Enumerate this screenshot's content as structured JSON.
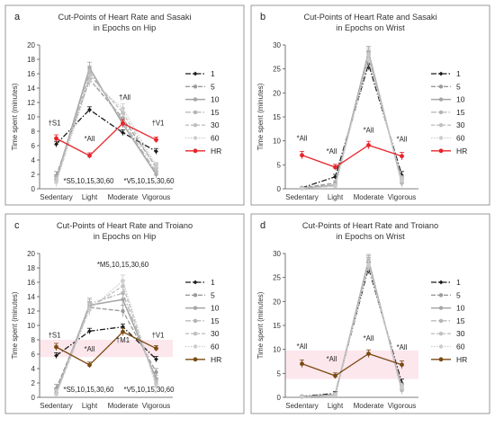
{
  "styles": {
    "one": {
      "color": "#1a1a1a",
      "dash": "6 2 1.5 2",
      "width": 1.3,
      "marker": "diamond",
      "r": 2.4
    },
    "five": {
      "color": "#9a9a9a",
      "dash": "5 2",
      "width": 1.3,
      "marker": "circle",
      "r": 2.2
    },
    "ten": {
      "color": "#a5a5a5",
      "dash": "",
      "width": 1.5,
      "marker": "circle",
      "r": 2.2
    },
    "fifteen": {
      "color": "#b4b4b4",
      "dash": "6 2 1.5 2",
      "width": 1.3,
      "marker": "circle",
      "r": 2.2
    },
    "thirty": {
      "color": "#c0c0c0",
      "dash": "4 2",
      "width": 1.3,
      "marker": "circle",
      "r": 2.2
    },
    "sixty": {
      "color": "#cccccc",
      "dash": "1.5 1.5",
      "width": 1.3,
      "marker": "circle",
      "r": 2.2
    },
    "hr_red": {
      "color": "#e8232a",
      "dash": "",
      "width": 1.3,
      "marker": "circle",
      "r": 2.4
    },
    "hr_brown": {
      "color": "#7b4a12",
      "dash": "",
      "width": 1.3,
      "marker": "circle",
      "r": 2.4
    }
  },
  "chart_data": [
    {
      "panel": "a",
      "type": "line",
      "title": "Cut-Points of Heart Rate and Sasaki",
      "subtitle": "in Epochs on Hip",
      "ylabel": "Time spent (minutes)",
      "categories": [
        "Sedentary",
        "Light",
        "Moderate",
        "Vigorous"
      ],
      "ylim": [
        0,
        20
      ],
      "yticks": [
        0,
        2,
        4,
        6,
        8,
        10,
        12,
        14,
        16,
        18,
        20
      ],
      "band": null,
      "legend": [
        "1",
        "5",
        "10",
        "15",
        "30",
        "60",
        "HR"
      ],
      "series": [
        {
          "name": "1",
          "style": "one",
          "values": [
            6.2,
            11.0,
            7.8,
            5.2
          ],
          "err": [
            0.4,
            0.4,
            0.4,
            0.4
          ]
        },
        {
          "name": "5",
          "style": "five",
          "values": [
            1.8,
            15.2,
            9.8,
            3.0
          ],
          "err": [
            0.6,
            0.8,
            0.6,
            0.5
          ]
        },
        {
          "name": "10",
          "style": "ten",
          "values": [
            1.3,
            16.8,
            9.0,
            2.0
          ],
          "err": [
            0.6,
            0.8,
            0.6,
            0.5
          ]
        },
        {
          "name": "15",
          "style": "fifteen",
          "values": [
            1.2,
            16.3,
            9.4,
            2.3
          ],
          "err": [
            0.6,
            0.8,
            0.6,
            0.5
          ]
        },
        {
          "name": "30",
          "style": "thirty",
          "values": [
            1.0,
            15.8,
            10.6,
            2.8
          ],
          "err": [
            0.6,
            0.8,
            0.6,
            0.5
          ]
        },
        {
          "name": "60",
          "style": "sixty",
          "values": [
            0.9,
            15.0,
            11.2,
            3.2
          ],
          "err": [
            0.6,
            0.8,
            0.6,
            0.5
          ]
        },
        {
          "name": "HR",
          "style": "hr_red",
          "values": [
            7.0,
            4.6,
            9.1,
            6.8
          ],
          "err": [
            0.5,
            0.4,
            0.5,
            0.4
          ]
        }
      ],
      "annotations": [
        {
          "text": "†S1",
          "cat": 0,
          "y": 8.8,
          "dx": -2
        },
        {
          "text": "*All",
          "cat": 1,
          "y": 6.6,
          "dx": 0
        },
        {
          "text": "†All",
          "cat": 2,
          "y": 12.4,
          "dx": 2
        },
        {
          "text": "†V1",
          "cat": 3,
          "y": 8.8,
          "dx": 2
        },
        {
          "text": "*S5,10,15,30,60",
          "cat": 0,
          "y": -0.4,
          "dx": 36
        },
        {
          "text": "*V5,10,15,30,60",
          "cat": 3,
          "y": -0.4,
          "dx": -8
        }
      ]
    },
    {
      "panel": "b",
      "type": "line",
      "title": "Cut-Points of Heart Rate and Sasaki",
      "subtitle": "in Epochs on Wrist",
      "ylabel": "Time spent (minutes)",
      "categories": [
        "Sedentary",
        "Light",
        "Moderate",
        "Vigorous"
      ],
      "ylim": [
        0,
        30
      ],
      "yticks": [
        0,
        5,
        10,
        15,
        20,
        25,
        30
      ],
      "band": null,
      "legend": [
        "1",
        "5",
        "10",
        "15",
        "30",
        "60",
        "HR"
      ],
      "series": [
        {
          "name": "1",
          "style": "one",
          "values": [
            0.2,
            2.5,
            26.0,
            2.8
          ],
          "err": [
            0.2,
            0.5,
            1.2,
            0.8
          ]
        },
        {
          "name": "5",
          "style": "five",
          "values": [
            0.2,
            1.2,
            27.5,
            1.8
          ],
          "err": [
            0.2,
            0.5,
            1.2,
            0.8
          ]
        },
        {
          "name": "10",
          "style": "ten",
          "values": [
            0.1,
            0.8,
            28.5,
            1.2
          ],
          "err": [
            0.2,
            0.5,
            1.2,
            0.8
          ]
        },
        {
          "name": "15",
          "style": "fifteen",
          "values": [
            0.1,
            0.7,
            28.2,
            1.4
          ],
          "err": [
            0.2,
            0.5,
            1.2,
            0.8
          ]
        },
        {
          "name": "30",
          "style": "thirty",
          "values": [
            0.1,
            0.6,
            27.8,
            1.6
          ],
          "err": [
            0.2,
            0.5,
            1.2,
            0.8
          ]
        },
        {
          "name": "60",
          "style": "sixty",
          "values": [
            0.1,
            0.5,
            27.0,
            1.9
          ],
          "err": [
            0.2,
            0.5,
            1.2,
            0.8
          ]
        },
        {
          "name": "HR",
          "style": "hr_red",
          "values": [
            7.0,
            4.5,
            9.1,
            6.8
          ],
          "err": [
            0.8,
            0.6,
            0.8,
            0.8
          ]
        }
      ],
      "annotations": [
        {
          "text": "*All",
          "cat": 0,
          "y": 10.0,
          "dx": 0
        },
        {
          "text": "*All",
          "cat": 1,
          "y": 7.3,
          "dx": -4
        },
        {
          "text": "*All",
          "cat": 2,
          "y": 11.7,
          "dx": 0
        },
        {
          "text": "*All",
          "cat": 3,
          "y": 9.8,
          "dx": 0
        }
      ]
    },
    {
      "panel": "c",
      "type": "line",
      "title": "Cut-Points of Heart Rate and Troiano",
      "subtitle": "in Epochs on Hip",
      "ylabel": "Time spent (minutes)",
      "categories": [
        "Sedentary",
        "Light",
        "Moderate",
        "Vigorous"
      ],
      "ylim": [
        0,
        20
      ],
      "yticks": [
        0,
        2,
        4,
        6,
        8,
        10,
        12,
        14,
        16,
        18,
        20
      ],
      "band": [
        5.6,
        8.0
      ],
      "legend": [
        "1",
        "5",
        "10",
        "15",
        "30",
        "60",
        "HR"
      ],
      "series": [
        {
          "name": "1",
          "style": "one",
          "values": [
            5.8,
            9.2,
            9.8,
            5.3
          ],
          "err": [
            0.4,
            0.4,
            0.4,
            0.4
          ]
        },
        {
          "name": "5",
          "style": "five",
          "values": [
            1.2,
            12.5,
            12.0,
            3.5
          ],
          "err": [
            0.6,
            0.8,
            0.8,
            0.5
          ]
        },
        {
          "name": "10",
          "style": "ten",
          "values": [
            0.7,
            12.8,
            13.6,
            2.6
          ],
          "err": [
            0.6,
            0.8,
            0.8,
            0.5
          ]
        },
        {
          "name": "15",
          "style": "fifteen",
          "values": [
            0.6,
            13.0,
            14.5,
            2.2
          ],
          "err": [
            0.6,
            0.8,
            0.8,
            0.5
          ]
        },
        {
          "name": "30",
          "style": "thirty",
          "values": [
            0.5,
            12.4,
            15.5,
            1.9
          ],
          "err": [
            0.6,
            0.8,
            0.8,
            0.5
          ]
        },
        {
          "name": "60",
          "style": "sixty",
          "values": [
            0.4,
            12.2,
            16.2,
            1.6
          ],
          "err": [
            0.6,
            0.8,
            0.8,
            0.5
          ]
        },
        {
          "name": "HR",
          "style": "hr_brown",
          "values": [
            7.0,
            4.5,
            9.1,
            6.8
          ],
          "err": [
            0.5,
            0.4,
            0.5,
            0.4
          ]
        }
      ],
      "annotations": [
        {
          "text": "†S1",
          "cat": 0,
          "y": 8.3,
          "dx": -2
        },
        {
          "text": "*All",
          "cat": 1,
          "y": 6.4,
          "dx": 0
        },
        {
          "text": "†M1",
          "cat": 2,
          "y": 7.6,
          "dx": 0
        },
        {
          "text": "†V1",
          "cat": 3,
          "y": 8.3,
          "dx": 2
        },
        {
          "text": "*M5,10,15,30,60",
          "cat": 2,
          "y": 18.1,
          "dx": 0
        },
        {
          "text": "*S5,10,15,30,60",
          "cat": 0,
          "y": -0.4,
          "dx": 36
        },
        {
          "text": "*V5,10,15,30,60",
          "cat": 3,
          "y": -0.4,
          "dx": -8
        }
      ]
    },
    {
      "panel": "d",
      "type": "line",
      "title": "Cut-Points of Heart Rate and Troiano",
      "subtitle": "in Epochs on Wrist",
      "ylabel": "Time spent (minutes)",
      "categories": [
        "Sedentary",
        "Light",
        "Moderate",
        "Vigorous"
      ],
      "ylim": [
        0,
        30
      ],
      "yticks": [
        0,
        5,
        10,
        15,
        20,
        25,
        30
      ],
      "band": [
        3.8,
        9.8
      ],
      "legend": [
        "1",
        "5",
        "10",
        "15",
        "30",
        "60",
        "HR"
      ],
      "series": [
        {
          "name": "1",
          "style": "one",
          "values": [
            0.2,
            0.8,
            27.0,
            3.0
          ],
          "err": [
            0.2,
            0.4,
            1.2,
            0.8
          ]
        },
        {
          "name": "5",
          "style": "five",
          "values": [
            0.2,
            0.6,
            28.0,
            2.0
          ],
          "err": [
            0.2,
            0.4,
            1.2,
            0.8
          ]
        },
        {
          "name": "10",
          "style": "ten",
          "values": [
            0.1,
            0.5,
            28.6,
            1.5
          ],
          "err": [
            0.2,
            0.4,
            1.2,
            0.8
          ]
        },
        {
          "name": "15",
          "style": "fifteen",
          "values": [
            0.1,
            0.5,
            28.3,
            1.7
          ],
          "err": [
            0.2,
            0.4,
            1.2,
            0.8
          ]
        },
        {
          "name": "30",
          "style": "thirty",
          "values": [
            0.1,
            0.4,
            27.9,
            1.9
          ],
          "err": [
            0.2,
            0.4,
            1.2,
            0.8
          ]
        },
        {
          "name": "60",
          "style": "sixty",
          "values": [
            0.1,
            0.4,
            27.4,
            2.2
          ],
          "err": [
            0.2,
            0.4,
            1.2,
            0.8
          ]
        },
        {
          "name": "HR",
          "style": "hr_brown",
          "values": [
            7.0,
            4.5,
            9.1,
            6.8
          ],
          "err": [
            0.8,
            0.6,
            0.8,
            0.8
          ]
        }
      ],
      "annotations": [
        {
          "text": "*All",
          "cat": 0,
          "y": 10.1,
          "dx": 0
        },
        {
          "text": "*All",
          "cat": 1,
          "y": 7.5,
          "dx": -4
        },
        {
          "text": "*All",
          "cat": 2,
          "y": 11.8,
          "dx": 0
        },
        {
          "text": "*All",
          "cat": 3,
          "y": 9.9,
          "dx": 0
        }
      ]
    }
  ]
}
